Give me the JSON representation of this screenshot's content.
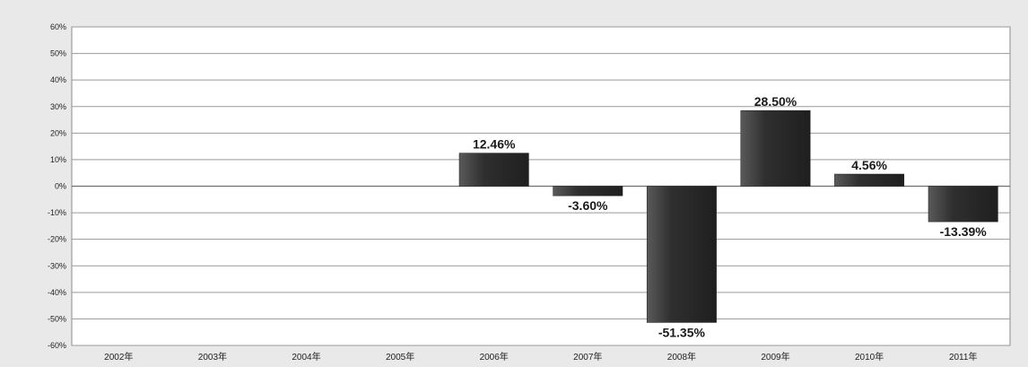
{
  "chart_data": {
    "type": "bar",
    "title": "",
    "xlabel": "",
    "ylabel": "",
    "categories": [
      "2002年",
      "2003年",
      "2004年",
      "2005年",
      "2006年",
      "2007年",
      "2008年",
      "2009年",
      "2010年",
      "2011年"
    ],
    "values": [
      null,
      null,
      null,
      null,
      12.46,
      -3.6,
      -51.35,
      28.5,
      4.56,
      -13.39
    ],
    "value_labels": [
      "",
      "",
      "",
      "",
      "12.46%",
      "-3.60%",
      "-51.35%",
      "28.50%",
      "4.56%",
      "-13.39%"
    ],
    "ylim": [
      -60,
      60
    ],
    "yticks": [
      60,
      50,
      40,
      30,
      20,
      10,
      0,
      -10,
      -20,
      -30,
      -40,
      -50,
      -60
    ],
    "ytick_labels": [
      "60%",
      "50%",
      "40%",
      "30%",
      "20%",
      "10%",
      "0%",
      "-10%",
      "-20%",
      "-30%",
      "-40%",
      "-50%",
      "-60%"
    ],
    "grid": true,
    "legend": "none",
    "colors": {
      "bar": "#2f2f2f",
      "bar_highlight": "#5a5a5a",
      "grid": "#9a9a9a",
      "plot_background": "#ffffff",
      "page_background": "#e9e9e9"
    }
  }
}
